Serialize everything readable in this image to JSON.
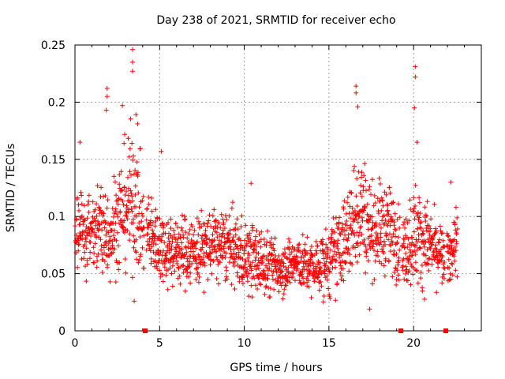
{
  "chart_data": {
    "type": "scatter",
    "title": "Day 238 of 2021, SRMTID for receiver echo",
    "xlabel": "GPS time / hours",
    "ylabel": "SRMTID / TECUs",
    "xlim": [
      0,
      24
    ],
    "ylim": [
      0,
      0.25
    ],
    "x_ticks": [
      0,
      5,
      10,
      15,
      20
    ],
    "x_tick_labels": [
      "0",
      "5",
      "10",
      "15",
      "20"
    ],
    "y_ticks": [
      0,
      0.05,
      0.1,
      0.15,
      0.2,
      0.25
    ],
    "y_tick_labels": [
      "0",
      "0.05",
      "0.1",
      "0.15",
      "0.2",
      "0.25"
    ],
    "grid": true,
    "marker": "+",
    "series": [
      {
        "name": "SRMTID",
        "color": "#ff0000",
        "profile": {
          "description": "typical value envelope by hour (mean / spread)",
          "hours": [
            0,
            1,
            2,
            3,
            3.5,
            4,
            5,
            6,
            7,
            8,
            9,
            10,
            11,
            12,
            13,
            14,
            15,
            16,
            16.8,
            17.5,
            18.5,
            19.5,
            20,
            21,
            22,
            22.5
          ],
          "mean": [
            0.09,
            0.085,
            0.085,
            0.11,
            0.12,
            0.09,
            0.075,
            0.07,
            0.07,
            0.075,
            0.075,
            0.065,
            0.06,
            0.055,
            0.06,
            0.055,
            0.06,
            0.08,
            0.11,
            0.09,
            0.09,
            0.07,
            0.085,
            0.075,
            0.06,
            0.08
          ],
          "spread": [
            0.02,
            0.02,
            0.025,
            0.035,
            0.04,
            0.025,
            0.02,
            0.02,
            0.02,
            0.02,
            0.02,
            0.02,
            0.02,
            0.015,
            0.015,
            0.015,
            0.02,
            0.025,
            0.035,
            0.025,
            0.025,
            0.02,
            0.03,
            0.02,
            0.015,
            0.02
          ]
        },
        "peaks": [
          {
            "x": 0.3,
            "y": 0.165
          },
          {
            "x": 1.9,
            "y": 0.212
          },
          {
            "x": 1.9,
            "y": 0.205
          },
          {
            "x": 1.85,
            "y": 0.193
          },
          {
            "x": 3.4,
            "y": 0.246
          },
          {
            "x": 3.4,
            "y": 0.235
          },
          {
            "x": 3.4,
            "y": 0.227
          },
          {
            "x": 2.8,
            "y": 0.197
          },
          {
            "x": 3.6,
            "y": 0.189
          },
          {
            "x": 3.7,
            "y": 0.181
          },
          {
            "x": 5.1,
            "y": 0.157
          },
          {
            "x": 16.6,
            "y": 0.214
          },
          {
            "x": 16.6,
            "y": 0.208
          },
          {
            "x": 16.7,
            "y": 0.196
          },
          {
            "x": 20.1,
            "y": 0.231
          },
          {
            "x": 20.1,
            "y": 0.222
          },
          {
            "x": 20.05,
            "y": 0.195
          },
          {
            "x": 20.2,
            "y": 0.165
          },
          {
            "x": 10.4,
            "y": 0.129
          },
          {
            "x": 22.2,
            "y": 0.13
          },
          {
            "x": 17.4,
            "y": 0.019
          },
          {
            "x": 3.5,
            "y": 0.026
          }
        ]
      }
    ],
    "gap_markers_x": [
      4.15,
      19.25,
      21.9
    ]
  }
}
